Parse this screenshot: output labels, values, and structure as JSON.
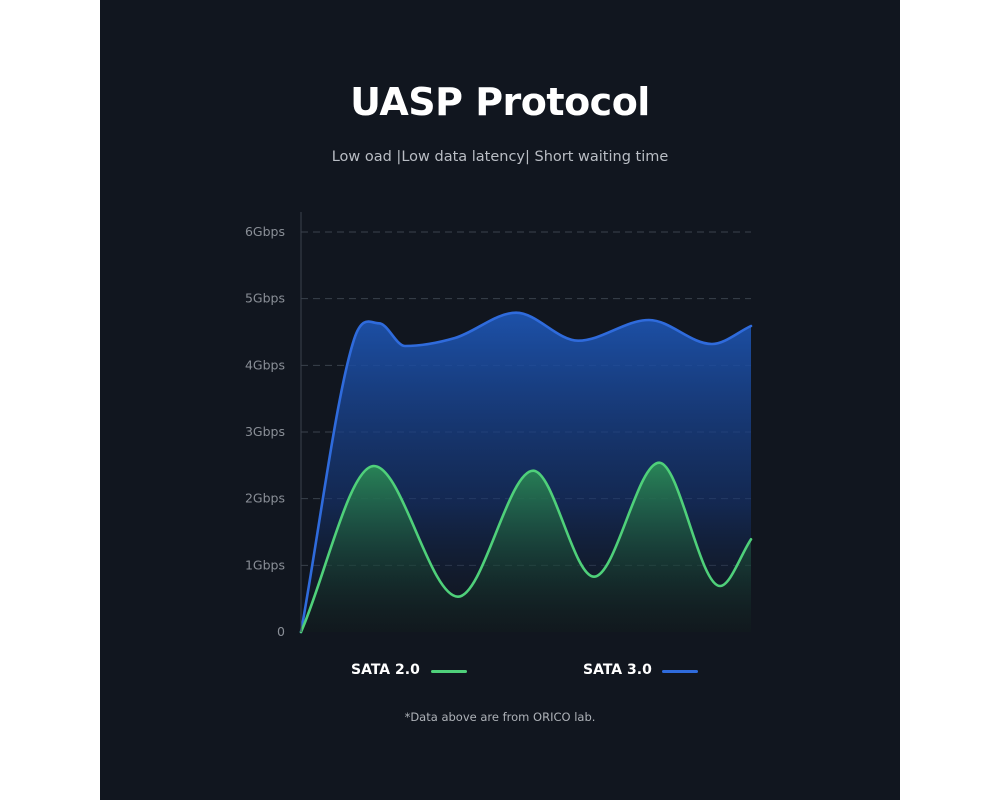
{
  "header": {
    "title": "UASP Protocol",
    "subtitle": "Low oad |Low data latency| Short waiting time"
  },
  "chart_data": {
    "type": "area",
    "y_ticks": [
      "0",
      "1Gbps",
      "2Gbps",
      "3Gbps",
      "4Gbps",
      "5Gbps",
      "6Gbps"
    ],
    "ylim": [
      0,
      6
    ],
    "xlim": [
      0,
      100
    ],
    "grid": true,
    "legend_position": "bottom",
    "series": [
      {
        "name": "SATA 2.0",
        "color": "#4fd07a",
        "x": [
          0,
          16.2,
          34.9,
          51.6,
          65.1,
          79.6,
          93.1,
          100
        ],
        "y": [
          0,
          2.49,
          0.53,
          2.42,
          0.83,
          2.54,
          0.69,
          1.39
        ]
      },
      {
        "name": "SATA 3.0",
        "color": "#2f6bdc",
        "x": [
          0,
          11.8,
          17.3,
          23.1,
          34.2,
          47.8,
          61.6,
          77.3,
          91.3,
          100
        ],
        "y": [
          0,
          4.39,
          4.63,
          4.29,
          4.41,
          4.79,
          4.37,
          4.68,
          4.32,
          4.59
        ]
      }
    ]
  },
  "legend": {
    "sata2_label": "SATA 2.0",
    "sata3_label": "SATA 3.0"
  },
  "footnote": "*Data above are from ORICO lab."
}
